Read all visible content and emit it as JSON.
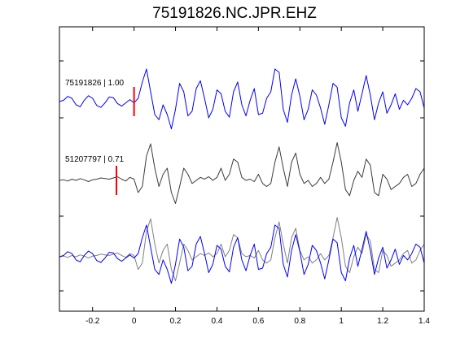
{
  "chart_data": {
    "type": "line",
    "title": "75191826.NC.JPR.EHZ",
    "xlabel": "",
    "ylabel": "",
    "xlim": [
      -0.36,
      1.4
    ],
    "x_ticks": [
      -0.2,
      0,
      0.2,
      0.4,
      0.6,
      0.8,
      1,
      1.2,
      1.4
    ],
    "x_tick_labels": [
      "-0.2",
      "0",
      "0.2",
      "0.4",
      "0.6",
      "0.8",
      "1",
      "1.2",
      "1.4"
    ],
    "grid": false,
    "colors": {
      "master": "#0000ff",
      "other": "#3c3c3c",
      "overlay_other": "#808080",
      "pick": "#ff0000",
      "axis": "#000000"
    },
    "traces": [
      {
        "label": "75191826 | 1.00",
        "pick_time": 0.0,
        "color": "#0000ff"
      },
      {
        "label": "51207797 | 0.71",
        "pick_time": -0.085,
        "color": "#3c3c3c"
      }
    ],
    "series": [
      {
        "name": "75191826",
        "x": [
          -0.36,
          -0.34,
          -0.32,
          -0.3,
          -0.28,
          -0.26,
          -0.24,
          -0.22,
          -0.2,
          -0.18,
          -0.16,
          -0.14,
          -0.12,
          -0.1,
          -0.08,
          -0.06,
          -0.04,
          -0.02,
          0,
          0.02,
          0.04,
          0.06,
          0.08,
          0.1,
          0.12,
          0.14,
          0.16,
          0.18,
          0.2,
          0.22,
          0.24,
          0.26,
          0.28,
          0.3,
          0.32,
          0.34,
          0.36,
          0.38,
          0.4,
          0.42,
          0.44,
          0.46,
          0.48,
          0.5,
          0.52,
          0.54,
          0.56,
          0.58,
          0.6,
          0.62,
          0.64,
          0.66,
          0.68,
          0.7,
          0.72,
          0.74,
          0.76,
          0.78,
          0.8,
          0.82,
          0.84,
          0.86,
          0.88,
          0.9,
          0.92,
          0.94,
          0.96,
          0.98,
          1,
          1.02,
          1.04,
          1.06,
          1.08,
          1.1,
          1.12,
          1.14,
          1.16,
          1.18,
          1.2,
          1.22,
          1.24,
          1.26,
          1.28,
          1.3,
          1.32,
          1.34,
          1.36,
          1.38,
          1.4
        ],
        "y": [
          0,
          0.02,
          0.08,
          0.05,
          -0.05,
          -0.08,
          0.02,
          0.09,
          0.05,
          -0.06,
          -0.09,
          -0.02,
          0.07,
          0.06,
          -0.03,
          -0.07,
          -0.02,
          0.03,
          -0.02,
          0.05,
          0.3,
          0.5,
          0.15,
          -0.2,
          -0.28,
          -0.05,
          -0.2,
          -0.42,
          -0.12,
          0.28,
          0.15,
          -0.22,
          -0.15,
          0.2,
          0.32,
          0.05,
          -0.25,
          -0.12,
          0.18,
          0.12,
          -0.15,
          -0.24,
          0.15,
          0.3,
          -0.05,
          -0.22,
          0.02,
          0.2,
          -0.2,
          -0.18,
          0.05,
          0.15,
          0.5,
          0.45,
          -0.12,
          -0.32,
          0.1,
          0.35,
          0.08,
          -0.28,
          -0.12,
          0.18,
          0.1,
          -0.1,
          -0.35,
          -0.05,
          0.28,
          0.22,
          -0.25,
          -0.38,
          -0.02,
          0.18,
          -0.15,
          0.12,
          0.4,
          0.1,
          -0.28,
          -0.02,
          0.15,
          -0.18,
          -0.05,
          0.12,
          -0.12,
          0.02,
          -0.05,
          0.05,
          0.2,
          0.15,
          -0.1
        ]
      },
      {
        "name": "51207797",
        "x": [
          -0.36,
          -0.34,
          -0.32,
          -0.3,
          -0.28,
          -0.26,
          -0.24,
          -0.22,
          -0.2,
          -0.18,
          -0.16,
          -0.14,
          -0.12,
          -0.1,
          -0.08,
          -0.06,
          -0.04,
          -0.02,
          0,
          0.02,
          0.04,
          0.06,
          0.08,
          0.1,
          0.12,
          0.14,
          0.16,
          0.18,
          0.2,
          0.22,
          0.24,
          0.26,
          0.28,
          0.3,
          0.32,
          0.34,
          0.36,
          0.38,
          0.4,
          0.42,
          0.44,
          0.46,
          0.48,
          0.5,
          0.52,
          0.54,
          0.56,
          0.58,
          0.6,
          0.62,
          0.64,
          0.66,
          0.68,
          0.7,
          0.72,
          0.74,
          0.76,
          0.78,
          0.8,
          0.82,
          0.84,
          0.86,
          0.88,
          0.9,
          0.92,
          0.94,
          0.96,
          0.98,
          1,
          1.02,
          1.04,
          1.06,
          1.08,
          1.1,
          1.12,
          1.14,
          1.16,
          1.18,
          1.2,
          1.22,
          1.24,
          1.26,
          1.28,
          1.3,
          1.32,
          1.34,
          1.36,
          1.38,
          1.4
        ],
        "y": [
          0,
          0.01,
          -0.01,
          0.02,
          0,
          0.03,
          0.01,
          -0.02,
          0.01,
          0.02,
          0.04,
          0.03,
          0.02,
          0.04,
          0.06,
          0.02,
          -0.01,
          0.05,
          0.02,
          -0.2,
          -0.1,
          0.4,
          0.6,
          0.2,
          -0.1,
          0.1,
          0.2,
          -0.2,
          -0.38,
          -0.1,
          0.2,
          0.1,
          -0.05,
          0.0,
          0.05,
          0.02,
          0.06,
          0.0,
          0.05,
          0.2,
          0.0,
          0.1,
          0.35,
          0.3,
          0.05,
          0.0,
          0.02,
          -0.02,
          0.1,
          -0.05,
          -0.1,
          -0.05,
          0.3,
          0.55,
          0.2,
          -0.1,
          0.3,
          0.45,
          0.1,
          -0.05,
          0.0,
          -0.1,
          -0.05,
          0.05,
          -0.05,
          0.02,
          0.3,
          0.62,
          0.3,
          -0.15,
          -0.25,
          0.0,
          0.15,
          0.05,
          0.35,
          0.25,
          -0.2,
          -0.25,
          0.1,
          0.02,
          -0.15,
          -0.1,
          -0.05,
          0.05,
          0.1,
          -0.1,
          -0.05,
          0.1,
          0.2
        ]
      }
    ]
  }
}
